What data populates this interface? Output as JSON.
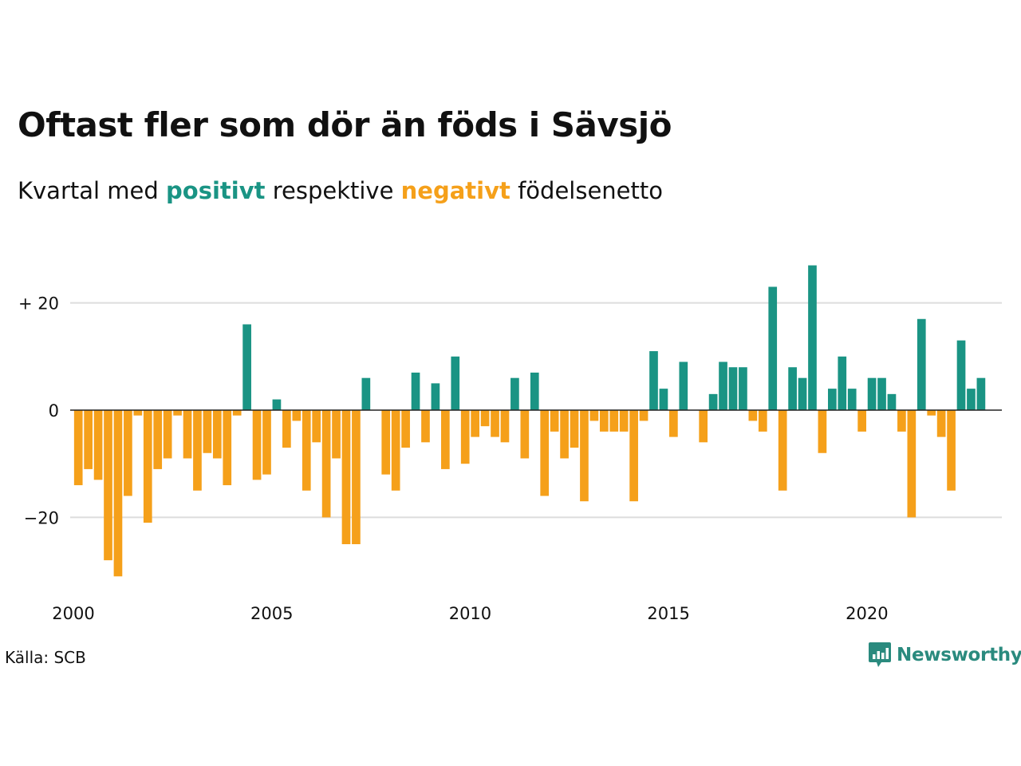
{
  "header": {
    "title": "Oftast fler som dör än föds i Sävsjö",
    "subtitle_before": "Kvartal med ",
    "subtitle_positive": "positivt",
    "subtitle_middle": " respektive ",
    "subtitle_negative": "negativt",
    "subtitle_after": " födelsenetto"
  },
  "footer": {
    "source": "Källa: SCB",
    "brand": "Newsworthy",
    "brand_icon": "bar-chart-speech-bubble-icon"
  },
  "colors": {
    "positive": "#1a9484",
    "negative": "#f5a01a",
    "grid": "#dddddd",
    "axis": "#222222",
    "brand": "#2a8a7e"
  },
  "chart_data": {
    "type": "bar",
    "title": "Oftast fler som dör än föds i Sävsjö",
    "subtitle": "Kvartal med positivt respektive negativt födelsenetto",
    "x_start": 2000,
    "x_step": 0.25,
    "ylim": [
      -31,
      27
    ],
    "xlim": [
      2000,
      2023.4
    ],
    "grid": true,
    "y_ticks": [
      {
        "value": 20,
        "label": "+ 20"
      },
      {
        "value": 0,
        "label": "0"
      },
      {
        "value": -20,
        "label": "−20"
      }
    ],
    "x_ticks": [
      {
        "value": 2000,
        "label": "2000"
      },
      {
        "value": 2005,
        "label": "2005"
      },
      {
        "value": 2010,
        "label": "2010"
      },
      {
        "value": 2015,
        "label": "2015"
      },
      {
        "value": 2020,
        "label": "2020"
      }
    ],
    "values": [
      -14,
      -11,
      -13,
      -28,
      -31,
      -16,
      -1,
      -21,
      -11,
      -9,
      -1,
      -9,
      -15,
      -8,
      -9,
      -14,
      -1,
      16,
      -13,
      -12,
      2,
      -7,
      -2,
      -15,
      -6,
      -20,
      -9,
      -25,
      -25,
      6,
      0,
      -12,
      -15,
      -7,
      7,
      -6,
      5,
      -11,
      10,
      -10,
      -5,
      -3,
      -5,
      -6,
      6,
      -9,
      7,
      -16,
      -4,
      -9,
      -7,
      -17,
      -2,
      -4,
      -4,
      -4,
      -17,
      -2,
      11,
      4,
      -5,
      9,
      0,
      -6,
      3,
      9,
      8,
      8,
      -2,
      -4,
      23,
      -15,
      8,
      6,
      27,
      -8,
      4,
      10,
      4,
      -4,
      6,
      6,
      3,
      -4,
      -20,
      17,
      -1,
      -5,
      -15,
      13,
      4,
      6
    ]
  }
}
